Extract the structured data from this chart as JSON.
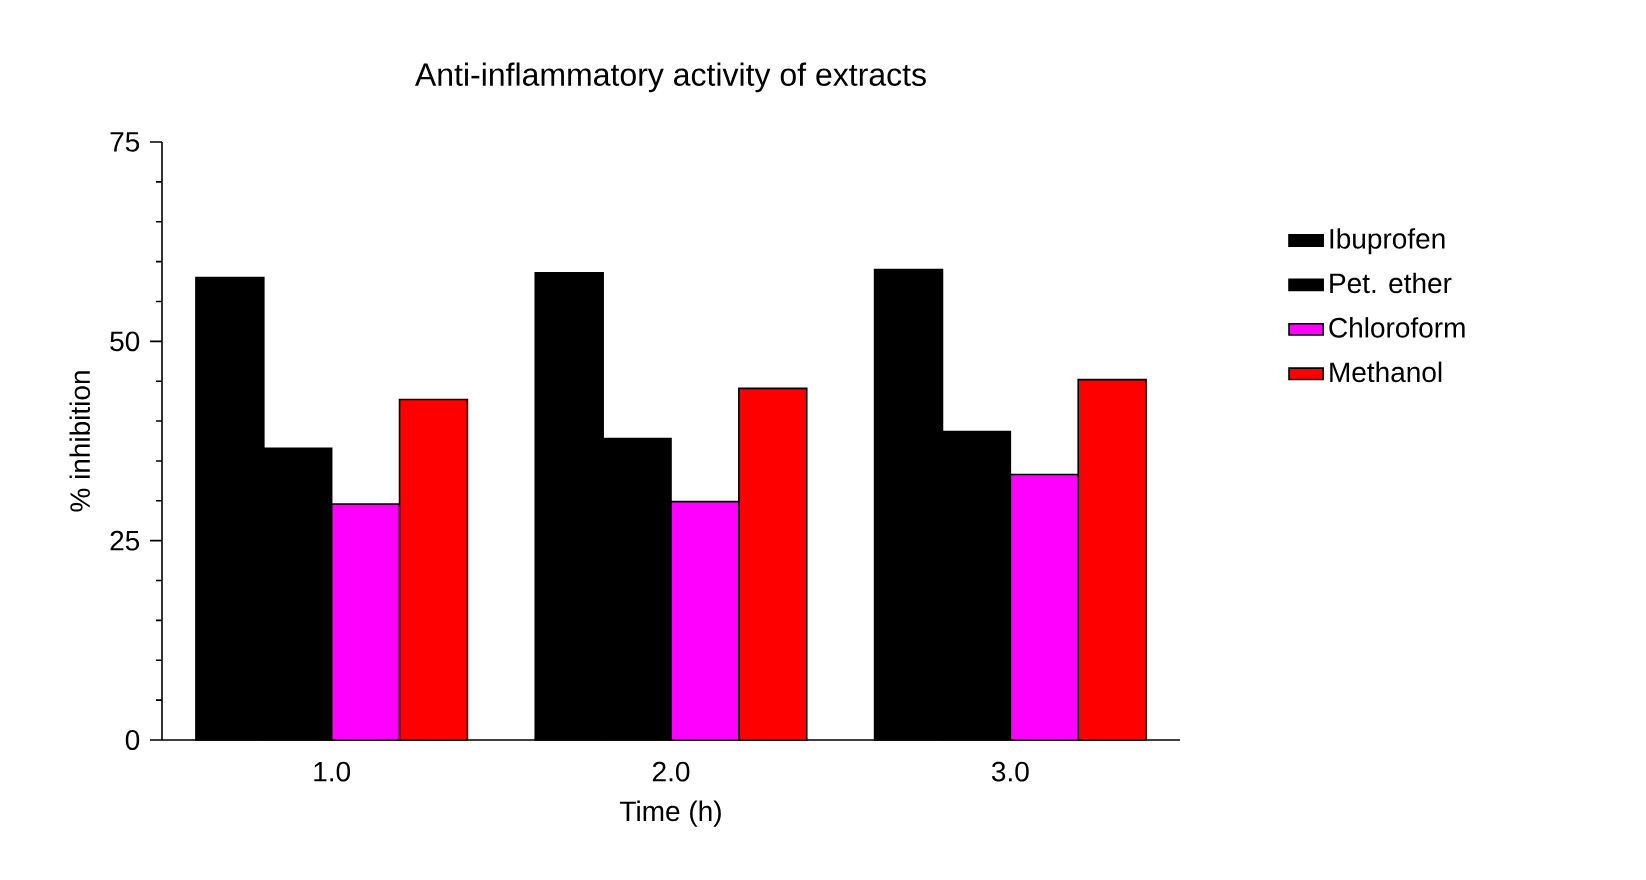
{
  "chart_data": {
    "type": "bar",
    "title": "Anti-inflammatory activity of extracts",
    "xlabel": "Time (h)",
    "ylabel": "% inhibition",
    "categories": [
      "1.0",
      "2.0",
      "3.0"
    ],
    "series": [
      {
        "name": "Ibuprofen",
        "color": "#000000",
        "values": [
          58.0,
          58.6,
          59.0
        ]
      },
      {
        "name": "Pet. ether",
        "color": "#000000",
        "values": [
          36.6,
          37.8,
          38.7
        ]
      },
      {
        "name": "Chloroform",
        "color": "#ff00ff",
        "values": [
          29.6,
          29.9,
          33.3
        ]
      },
      {
        "name": "Methanol",
        "color": "#ff0000",
        "values": [
          42.7,
          44.1,
          45.2
        ]
      }
    ],
    "ylim": [
      0,
      75
    ],
    "yticks": [
      0,
      25,
      50,
      75
    ],
    "grid": false,
    "legend": "right"
  }
}
